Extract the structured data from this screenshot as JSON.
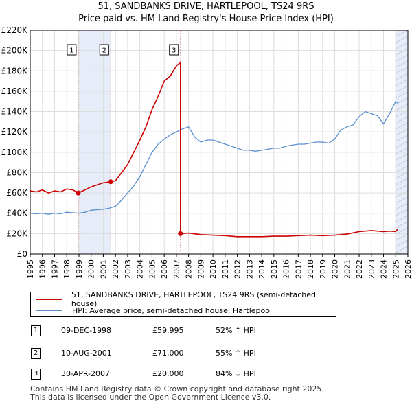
{
  "title_line1": "51, SANDBANKS DRIVE, HARTLEPOOL, TS24 9RS",
  "title_line2": "Price paid vs. HM Land Registry's House Price Index (HPI)",
  "legend": {
    "property_label": "51, SANDBANKS DRIVE, HARTLEPOOL, TS24 9RS (semi-detached house)",
    "hpi_label": "HPI: Average price, semi-detached house, Hartlepool"
  },
  "transactions": [
    {
      "num": "1",
      "date": "09-DEC-1998",
      "price": "£59,995",
      "hpi": "52% ↑ HPI"
    },
    {
      "num": "2",
      "date": "10-AUG-2001",
      "price": "£71,000",
      "hpi": "55% ↑ HPI"
    },
    {
      "num": "3",
      "date": "30-APR-2007",
      "price": "£20,000",
      "hpi": "84% ↓ HPI"
    }
  ],
  "footer_line1": "Contains HM Land Registry data © Crown copyright and database right 2025.",
  "footer_line2": "This data is licensed under the Open Government Licence v3.0.",
  "colors": {
    "property": "#cc0000",
    "hpi": "#5b8fcf",
    "shade": "#e6ecf8",
    "grid": "#dddddd"
  },
  "chart_data": {
    "type": "line",
    "xlim": [
      1995,
      2026
    ],
    "ylim": [
      0,
      220000
    ],
    "yticks": [
      0,
      20000,
      40000,
      60000,
      80000,
      100000,
      120000,
      140000,
      160000,
      180000,
      200000,
      220000
    ],
    "ytick_labels": [
      "£0",
      "£20K",
      "£40K",
      "£60K",
      "£80K",
      "£100K",
      "£120K",
      "£140K",
      "£160K",
      "£180K",
      "£200K",
      "£220K"
    ],
    "xticks": [
      1995,
      1996,
      1997,
      1998,
      1999,
      2000,
      2001,
      2002,
      2003,
      2004,
      2005,
      2006,
      2007,
      2008,
      2009,
      2010,
      2011,
      2012,
      2013,
      2014,
      2015,
      2016,
      2017,
      2018,
      2019,
      2020,
      2021,
      2022,
      2023,
      2024,
      2025,
      2026
    ],
    "shaded_ranges": [
      [
        1998.94,
        2001.61
      ],
      [
        2007.33,
        2007.33
      ],
      [
        2025.0,
        2026.0
      ]
    ],
    "markers": [
      {
        "label": "1",
        "x": 1998.94,
        "y": 59995
      },
      {
        "label": "2",
        "x": 2001.61,
        "y": 71000
      },
      {
        "label": "3",
        "x": 2007.33,
        "y": 20000
      }
    ],
    "series": [
      {
        "name": "51, SANDBANKS DRIVE, HARTLEPOOL, TS24 9RS (semi-detached house)",
        "x": [
          1995,
          1995.5,
          1996,
          1996.5,
          1997,
          1997.5,
          1998,
          1998.5,
          1998.94,
          1999.5,
          2000,
          2000.5,
          2001,
          2001.61,
          2002,
          2002.5,
          2003,
          2003.5,
          2004,
          2004.5,
          2005,
          2005.5,
          2006,
          2006.5,
          2007.0,
          2007.2,
          2007.33,
          2007.33,
          2008,
          2009,
          2010,
          2011,
          2012,
          2013,
          2014,
          2015,
          2016,
          2017,
          2018,
          2019,
          2020,
          2021,
          2022,
          2023,
          2024,
          2024.5,
          2025,
          2025.2
        ],
        "values": [
          62000,
          61000,
          63000,
          60000,
          62000,
          61000,
          64000,
          63000,
          59995,
          63000,
          66000,
          68000,
          70000,
          71000,
          72000,
          80000,
          88000,
          100000,
          112000,
          125000,
          142000,
          155000,
          170000,
          175000,
          185000,
          187000,
          188000,
          20000,
          20500,
          19000,
          18500,
          18000,
          17000,
          17000,
          17000,
          17500,
          17500,
          18000,
          18500,
          18000,
          18500,
          19500,
          22000,
          23000,
          22000,
          22500,
          22000,
          25000
        ]
      },
      {
        "name": "HPI: Average price, semi-detached house, Hartlepool",
        "x": [
          1995,
          1995.5,
          1996,
          1996.5,
          1997,
          1997.5,
          1998,
          1998.5,
          1999,
          1999.5,
          2000,
          2000.5,
          2001,
          2001.5,
          2002,
          2002.5,
          2003,
          2003.5,
          2004,
          2004.5,
          2005,
          2005.5,
          2006,
          2006.5,
          2007,
          2007.5,
          2008,
          2008.5,
          2009,
          2009.5,
          2010,
          2010.5,
          2011,
          2011.5,
          2012,
          2012.5,
          2013,
          2013.5,
          2014,
          2014.5,
          2015,
          2015.5,
          2016,
          2016.5,
          2017,
          2017.5,
          2018,
          2018.5,
          2019,
          2019.5,
          2020,
          2020.5,
          2021,
          2021.5,
          2022,
          2022.5,
          2023,
          2023.5,
          2024,
          2024.5,
          2025,
          2025.2
        ],
        "values": [
          40000,
          39500,
          40000,
          39000,
          40000,
          39500,
          41000,
          40500,
          40000,
          41000,
          43000,
          43500,
          44000,
          45000,
          47000,
          53000,
          60000,
          67000,
          76000,
          88000,
          100000,
          108000,
          113000,
          117000,
          120000,
          123000,
          125000,
          115000,
          110000,
          112000,
          112000,
          110000,
          108000,
          106000,
          104000,
          102000,
          102000,
          101000,
          102000,
          103000,
          104000,
          104000,
          106000,
          107000,
          108000,
          108000,
          109000,
          110000,
          110000,
          109000,
          113000,
          122000,
          125000,
          127000,
          135000,
          140000,
          138000,
          136000,
          128000,
          138000,
          150000,
          148000
        ]
      }
    ]
  }
}
